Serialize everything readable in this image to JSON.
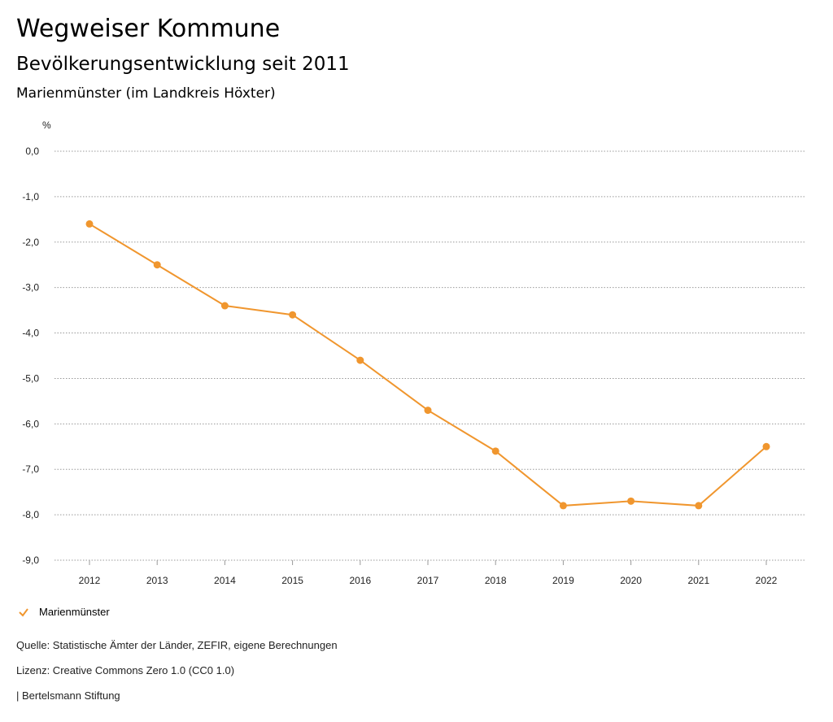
{
  "header": {
    "title": "Wegweiser Kommune",
    "subtitle": "Bevölkerungsentwicklung seit 2011",
    "region": "Marienmünster (im Landkreis Höxter)"
  },
  "chart_data": {
    "type": "line",
    "title": "Bevölkerungsentwicklung seit 2011",
    "ylabel": "%",
    "xlabel": "",
    "ylim": [
      -9,
      0
    ],
    "yticks": [
      0,
      -1,
      -2,
      -3,
      -4,
      -5,
      -6,
      -7,
      -8,
      -9
    ],
    "ytick_labels": [
      "0,0",
      "-1,0",
      "-2,0",
      "-3,0",
      "-4,0",
      "-5,0",
      "-6,0",
      "-7,0",
      "-8,0",
      "-9,0"
    ],
    "categories": [
      "2012",
      "2013",
      "2014",
      "2015",
      "2016",
      "2017",
      "2018",
      "2019",
      "2020",
      "2021",
      "2022"
    ],
    "series": [
      {
        "name": "Marienmünster",
        "color": "#f0962e",
        "values": [
          -1.6,
          -2.5,
          -3.4,
          -3.6,
          -4.6,
          -5.7,
          -6.6,
          -7.8,
          -7.7,
          -7.8,
          -6.5
        ]
      }
    ],
    "grid": true,
    "legend": "bottom-left"
  },
  "footer": {
    "source": "Quelle: Statistische Ämter der Länder, ZEFIR, eigene Berechnungen",
    "license": "Lizenz: Creative Commons Zero 1.0 (CC0 1.0)",
    "brand": "| Bertelsmann Stiftung"
  }
}
